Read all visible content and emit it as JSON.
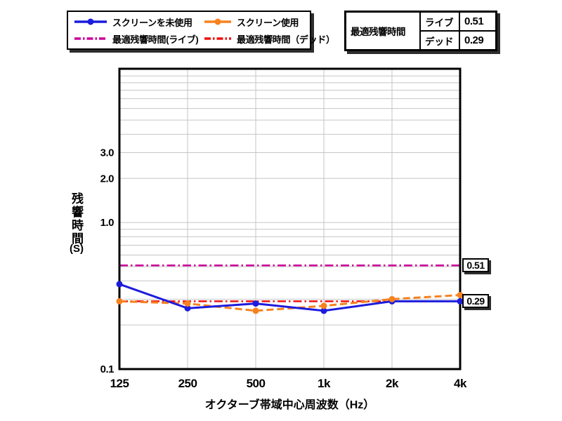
{
  "legend": {
    "items": [
      {
        "label": "スクリーンを未使用",
        "color": "#1c1cdd",
        "style": "solid",
        "marker": true
      },
      {
        "label": "スクリーン使用",
        "color": "#f6821f",
        "style": "solid",
        "marker": true
      },
      {
        "label": "最適残響時間(ライブ)",
        "color": "#cc0099",
        "style": "dashdot",
        "marker": false
      },
      {
        "label": "最適残響時間（デッド）",
        "color": "#ee1111",
        "style": "dashdot",
        "marker": false
      }
    ]
  },
  "info_table": {
    "title": "最適残響時間",
    "rows": [
      {
        "label": "ライブ",
        "value": "0.51"
      },
      {
        "label": "デッド",
        "value": "0.29"
      }
    ]
  },
  "chart_data": {
    "type": "line",
    "x_categories": [
      "125",
      "250",
      "500",
      "1k",
      "2k",
      "4k"
    ],
    "xlabel": "オクターブ帯域中心周波数（Hz）",
    "ylabel": "残響時間",
    "ylabel_unit": "(S)",
    "y_scale": "log",
    "ylim": [
      0.1,
      11.2
    ],
    "y_ticks": [
      {
        "value": 3.0,
        "label": "3.0"
      },
      {
        "value": 2.0,
        "label": "2.0"
      },
      {
        "value": 1.0,
        "label": "1.0"
      },
      {
        "value": 0.1,
        "label": "0.1"
      }
    ],
    "grid": {
      "color": "#c6c6c6",
      "y_minor": [
        0.2,
        0.3,
        0.4,
        0.5,
        0.6,
        0.7,
        0.8,
        0.9,
        1,
        2,
        3,
        4,
        5,
        6,
        7,
        8,
        9,
        10
      ]
    },
    "series": [
      {
        "name": "スクリーンを未使用",
        "color": "#1c1cdd",
        "style": "solid",
        "marker": true,
        "values": [
          0.38,
          0.26,
          0.28,
          0.25,
          0.29,
          0.29
        ]
      },
      {
        "name": "スクリーン使用",
        "color": "#f6821f",
        "style": "dashed",
        "marker": true,
        "values": [
          0.29,
          0.28,
          0.25,
          0.27,
          0.3,
          0.32
        ]
      }
    ],
    "reference_lines": [
      {
        "name": "最適残響時間(ライブ)",
        "value": 0.51,
        "label": "0.51",
        "color": "#cc0099",
        "style": "dashdot"
      },
      {
        "name": "最適残響時間（デッド）",
        "value": 0.29,
        "label": "0.29",
        "color": "#ee1111",
        "style": "dashdot"
      }
    ],
    "legend_position": "top-left",
    "grid_on": true
  }
}
